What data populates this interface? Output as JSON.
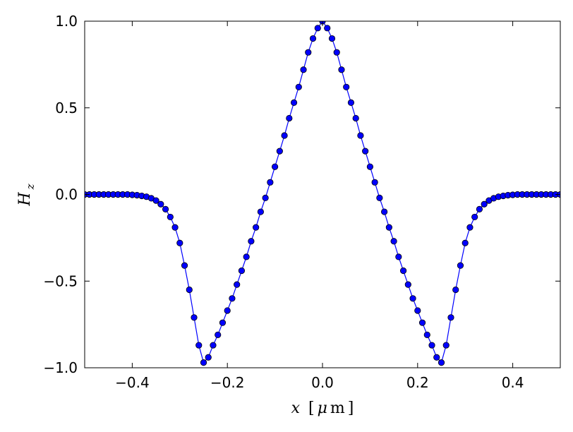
{
  "chart_data": {
    "type": "line",
    "xlabel": "x [μm]",
    "ylabel": "H_z",
    "xlim": [
      -0.5,
      0.5
    ],
    "ylim": [
      -1.0,
      1.0
    ],
    "x_ticks": [
      "−0.4",
      "−0.2",
      "0.0",
      "0.2",
      "0.4"
    ],
    "x_tick_values": [
      -0.4,
      -0.2,
      0.0,
      0.2,
      0.4
    ],
    "y_ticks": [
      "1.0",
      "0.5",
      "0.0",
      "−0.5",
      "−1.0"
    ],
    "y_tick_values": [
      1.0,
      0.5,
      0.0,
      -0.5,
      -1.0
    ],
    "grid": false,
    "series": [
      {
        "color": "#0000ff",
        "marker": "circle",
        "x": [
          -0.5,
          -0.49,
          -0.48,
          -0.47,
          -0.46,
          -0.45,
          -0.44,
          -0.43,
          -0.42,
          -0.41,
          -0.4,
          -0.39,
          -0.38,
          -0.37,
          -0.36,
          -0.35,
          -0.34,
          -0.33,
          -0.32,
          -0.31,
          -0.3,
          -0.29,
          -0.28,
          -0.27,
          -0.26,
          -0.25,
          -0.24,
          -0.23,
          -0.22,
          -0.21,
          -0.2,
          -0.19,
          -0.18,
          -0.17,
          -0.16,
          -0.15,
          -0.14,
          -0.13,
          -0.12,
          -0.11,
          -0.1,
          -0.09,
          -0.08,
          -0.07,
          -0.06,
          -0.05,
          -0.04,
          -0.03,
          -0.02,
          -0.01,
          0.0,
          0.01,
          0.02,
          0.03,
          0.04,
          0.05,
          0.06,
          0.07,
          0.08,
          0.09,
          0.1,
          0.11,
          0.12,
          0.13,
          0.14,
          0.15,
          0.16,
          0.17,
          0.18,
          0.19,
          0.2,
          0.21,
          0.22,
          0.23,
          0.24,
          0.25,
          0.26,
          0.27,
          0.28,
          0.29,
          0.3,
          0.31,
          0.32,
          0.33,
          0.34,
          0.35,
          0.36,
          0.37,
          0.38,
          0.39,
          0.4,
          0.41,
          0.42,
          0.43,
          0.44,
          0.45,
          0.46,
          0.47,
          0.48,
          0.49,
          0.5
        ],
        "y": [
          0.0,
          0.0,
          0.0,
          0.0,
          0.0,
          0.0,
          0.0,
          0.0,
          0.0,
          0.0,
          -0.002,
          -0.004,
          -0.008,
          -0.013,
          -0.022,
          -0.035,
          -0.056,
          -0.085,
          -0.13,
          -0.19,
          -0.28,
          -0.41,
          -0.55,
          -0.71,
          -0.87,
          -0.97,
          -0.94,
          -0.87,
          -0.81,
          -0.74,
          -0.67,
          -0.6,
          -0.52,
          -0.44,
          -0.36,
          -0.27,
          -0.19,
          -0.1,
          -0.02,
          0.07,
          0.16,
          0.25,
          0.34,
          0.44,
          0.53,
          0.62,
          0.72,
          0.82,
          0.9,
          0.96,
          1.0,
          0.96,
          0.9,
          0.82,
          0.72,
          0.62,
          0.53,
          0.44,
          0.34,
          0.25,
          0.16,
          0.07,
          -0.02,
          -0.1,
          -0.19,
          -0.27,
          -0.36,
          -0.44,
          -0.52,
          -0.6,
          -0.67,
          -0.74,
          -0.81,
          -0.87,
          -0.94,
          -0.97,
          -0.87,
          -0.71,
          -0.55,
          -0.41,
          -0.28,
          -0.19,
          -0.13,
          -0.085,
          -0.056,
          -0.035,
          -0.022,
          -0.013,
          -0.008,
          -0.004,
          -0.002,
          0.0,
          0.0,
          0.0,
          0.0,
          0.0,
          0.0,
          0.0,
          0.0,
          0.0,
          0.0
        ]
      }
    ]
  },
  "labels": {
    "x_var": "x",
    "x_unit_open": "[",
    "x_unit_mu": "μ",
    "x_unit_m": "m",
    "x_unit_close": "]",
    "y_var": "H",
    "y_sub": "z"
  }
}
